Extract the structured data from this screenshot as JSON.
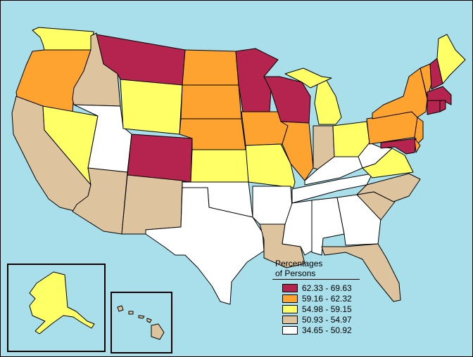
{
  "legend": {
    "title_line1": "Percentages",
    "title_line2": "of Persons",
    "items": [
      {
        "label": "62.33 - 69.63",
        "color": "#b5244e"
      },
      {
        "label": "59.16 - 62.32",
        "color": "#ffa330"
      },
      {
        "label": "54.98 - 59.15",
        "color": "#ffff66"
      },
      {
        "label": "50.93 - 54.97",
        "color": "#dec49e"
      },
      {
        "label": "34.65 - 50.92",
        "color": "#ffffff"
      }
    ]
  },
  "colors": {
    "ocean": "#a8dfea",
    "class1": "#b5244e",
    "class2": "#ffa330",
    "class3": "#ffff66",
    "class4": "#dec49e",
    "class5": "#ffffff"
  }
}
